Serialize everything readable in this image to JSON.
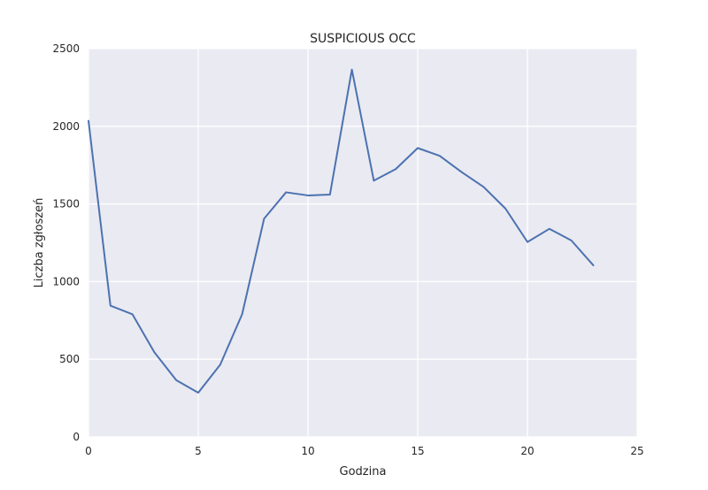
{
  "chart_data": {
    "type": "line",
    "title": "SUSPICIOUS OCC",
    "xlabel": "Godzina",
    "ylabel": "Liczba zgłoszeń",
    "xlim": [
      0,
      25
    ],
    "ylim": [
      0,
      2500
    ],
    "xticks": [
      0,
      5,
      10,
      15,
      20,
      25
    ],
    "yticks": [
      0,
      500,
      1000,
      1500,
      2000,
      2500
    ],
    "grid": true,
    "colors": {
      "plot_background": "#eaeaf2",
      "grid": "#ffffff",
      "line": "#4c72b0"
    },
    "series": [
      {
        "x": [
          0,
          1,
          2,
          3,
          4,
          5,
          6,
          7,
          8,
          9,
          10,
          11,
          12,
          13,
          14,
          15,
          16,
          17,
          18,
          19,
          20,
          21,
          22,
          23
        ],
        "values": [
          2035,
          845,
          790,
          545,
          365,
          285,
          465,
          790,
          1405,
          1575,
          1555,
          1560,
          2365,
          1650,
          1725,
          1860,
          1810,
          1705,
          1610,
          1470,
          1255,
          1340,
          1265,
          1105
        ]
      }
    ]
  }
}
